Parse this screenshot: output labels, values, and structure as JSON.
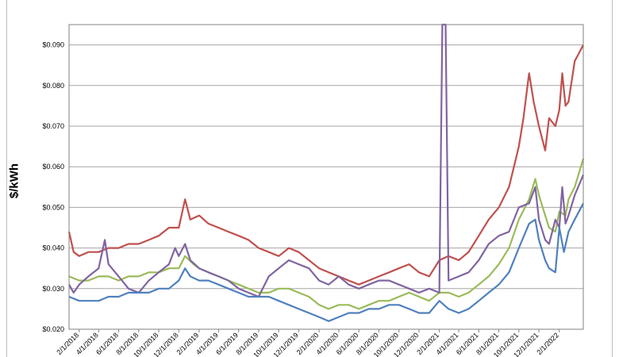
{
  "chart_data": {
    "type": "line",
    "title": "",
    "xlabel": "",
    "ylabel": "$/kWh",
    "ylim": [
      0.02,
      0.095
    ],
    "grid": true,
    "legend": "none",
    "yticks": [
      "$0.020",
      "$0.030",
      "$0.040",
      "$0.050",
      "$0.060",
      "$0.070",
      "$0.080",
      "$0.090"
    ],
    "ytick_values": [
      0.02,
      0.03,
      0.04,
      0.05,
      0.06,
      0.07,
      0.08,
      0.09
    ],
    "x_tick_labels": [
      "2/1/2018",
      "4/1/2018",
      "6/1/2018",
      "8/1/2018",
      "10/1/2018",
      "12/1/2018",
      "2/1/2019",
      "4/1/2019",
      "6/1/2019",
      "8/1/2019",
      "10/1/2019",
      "12/1/2019",
      "2/1/2020",
      "4/1/2020",
      "6/1/2020",
      "8/1/2020",
      "10/1/2020",
      "12/1/2020",
      "2/1/2021",
      "4/1/2021",
      "6/1/2021",
      "8/1/2021",
      "10/1/2021",
      "12/1/2021",
      "2/1/2022"
    ],
    "x_range": [
      "1/1/2018",
      "4/15/2022"
    ],
    "series": [
      {
        "name": "",
        "color": "#c0504d",
        "points": [
          [
            "1/1/2018",
            0.044
          ],
          [
            "1/15/2018",
            0.039
          ],
          [
            "2/1/2018",
            0.038
          ],
          [
            "3/1/2018",
            0.039
          ],
          [
            "4/1/2018",
            0.039
          ],
          [
            "5/1/2018",
            0.04
          ],
          [
            "6/1/2018",
            0.04
          ],
          [
            "7/1/2018",
            0.041
          ],
          [
            "8/1/2018",
            0.041
          ],
          [
            "9/1/2018",
            0.042
          ],
          [
            "10/1/2018",
            0.043
          ],
          [
            "11/1/2018",
            0.045
          ],
          [
            "12/1/2018",
            0.045
          ],
          [
            "12/20/2018",
            0.052
          ],
          [
            "1/5/2019",
            0.047
          ],
          [
            "2/1/2019",
            0.048
          ],
          [
            "3/1/2019",
            0.046
          ],
          [
            "4/1/2019",
            0.045
          ],
          [
            "5/1/2019",
            0.044
          ],
          [
            "6/1/2019",
            0.043
          ],
          [
            "7/1/2019",
            0.042
          ],
          [
            "8/1/2019",
            0.04
          ],
          [
            "9/1/2019",
            0.039
          ],
          [
            "10/1/2019",
            0.038
          ],
          [
            "11/1/2019",
            0.04
          ],
          [
            "12/1/2019",
            0.039
          ],
          [
            "1/1/2020",
            0.037
          ],
          [
            "2/1/2020",
            0.035
          ],
          [
            "3/1/2020",
            0.034
          ],
          [
            "4/1/2020",
            0.033
          ],
          [
            "5/1/2020",
            0.032
          ],
          [
            "6/1/2020",
            0.031
          ],
          [
            "7/1/2020",
            0.032
          ],
          [
            "8/1/2020",
            0.033
          ],
          [
            "9/1/2020",
            0.034
          ],
          [
            "10/1/2020",
            0.035
          ],
          [
            "11/1/2020",
            0.036
          ],
          [
            "12/1/2020",
            0.034
          ],
          [
            "1/1/2021",
            0.033
          ],
          [
            "2/1/2021",
            0.037
          ],
          [
            "3/1/2021",
            0.038
          ],
          [
            "4/1/2021",
            0.037
          ],
          [
            "5/1/2021",
            0.039
          ],
          [
            "6/1/2021",
            0.043
          ],
          [
            "7/1/2021",
            0.047
          ],
          [
            "8/1/2021",
            0.05
          ],
          [
            "9/1/2021",
            0.055
          ],
          [
            "10/1/2021",
            0.065
          ],
          [
            "10/15/2021",
            0.072
          ],
          [
            "11/1/2021",
            0.083
          ],
          [
            "11/15/2021",
            0.076
          ],
          [
            "12/1/2021",
            0.07
          ],
          [
            "12/20/2021",
            0.064
          ],
          [
            "1/1/2022",
            0.072
          ],
          [
            "1/20/2022",
            0.07
          ],
          [
            "2/1/2022",
            0.074
          ],
          [
            "2/10/2022",
            0.083
          ],
          [
            "2/20/2022",
            0.075
          ],
          [
            "3/1/2022",
            0.076
          ],
          [
            "3/20/2022",
            0.086
          ],
          [
            "4/15/2022",
            0.09
          ]
        ]
      },
      {
        "name": "",
        "color": "#9bbb59",
        "points": [
          [
            "1/1/2018",
            0.033
          ],
          [
            "2/1/2018",
            0.032
          ],
          [
            "3/1/2018",
            0.032
          ],
          [
            "4/1/2018",
            0.033
          ],
          [
            "5/1/2018",
            0.033
          ],
          [
            "6/1/2018",
            0.032
          ],
          [
            "7/1/2018",
            0.033
          ],
          [
            "8/1/2018",
            0.033
          ],
          [
            "9/1/2018",
            0.034
          ],
          [
            "10/1/2018",
            0.034
          ],
          [
            "11/1/2018",
            0.035
          ],
          [
            "12/1/2018",
            0.035
          ],
          [
            "12/20/2018",
            0.038
          ],
          [
            "1/15/2019",
            0.036
          ],
          [
            "2/1/2019",
            0.035
          ],
          [
            "3/1/2019",
            0.034
          ],
          [
            "4/1/2019",
            0.033
          ],
          [
            "5/1/2019",
            0.032
          ],
          [
            "6/1/2019",
            0.031
          ],
          [
            "7/1/2019",
            0.03
          ],
          [
            "8/1/2019",
            0.029
          ],
          [
            "9/1/2019",
            0.029
          ],
          [
            "10/1/2019",
            0.03
          ],
          [
            "11/1/2019",
            0.03
          ],
          [
            "12/1/2019",
            0.029
          ],
          [
            "1/1/2020",
            0.028
          ],
          [
            "2/1/2020",
            0.026
          ],
          [
            "3/1/2020",
            0.025
          ],
          [
            "4/1/2020",
            0.026
          ],
          [
            "5/1/2020",
            0.026
          ],
          [
            "6/1/2020",
            0.025
          ],
          [
            "7/1/2020",
            0.026
          ],
          [
            "8/1/2020",
            0.027
          ],
          [
            "9/1/2020",
            0.027
          ],
          [
            "10/1/2020",
            0.028
          ],
          [
            "11/1/2020",
            0.029
          ],
          [
            "12/1/2020",
            0.028
          ],
          [
            "1/1/2021",
            0.027
          ],
          [
            "2/1/2021",
            0.029
          ],
          [
            "3/1/2021",
            0.029
          ],
          [
            "4/1/2021",
            0.028
          ],
          [
            "5/1/2021",
            0.029
          ],
          [
            "6/1/2021",
            0.031
          ],
          [
            "7/1/2021",
            0.033
          ],
          [
            "8/1/2021",
            0.036
          ],
          [
            "9/1/2021",
            0.04
          ],
          [
            "10/1/2021",
            0.047
          ],
          [
            "11/1/2021",
            0.052
          ],
          [
            "11/20/2021",
            0.057
          ],
          [
            "12/1/2021",
            0.053
          ],
          [
            "12/20/2021",
            0.048
          ],
          [
            "1/1/2022",
            0.045
          ],
          [
            "1/20/2022",
            0.044
          ],
          [
            "2/1/2022",
            0.049
          ],
          [
            "2/20/2022",
            0.048
          ],
          [
            "3/1/2022",
            0.052
          ],
          [
            "3/20/2022",
            0.055
          ],
          [
            "4/15/2022",
            0.062
          ]
        ]
      },
      {
        "name": "",
        "color": "#8064a2",
        "points": [
          [
            "1/1/2018",
            0.031
          ],
          [
            "1/15/2018",
            0.029
          ],
          [
            "2/1/2018",
            0.031
          ],
          [
            "3/1/2018",
            0.033
          ],
          [
            "4/1/2018",
            0.035
          ],
          [
            "4/20/2018",
            0.042
          ],
          [
            "5/1/2018",
            0.036
          ],
          [
            "6/1/2018",
            0.033
          ],
          [
            "7/1/2018",
            0.03
          ],
          [
            "8/1/2018",
            0.029
          ],
          [
            "9/1/2018",
            0.032
          ],
          [
            "10/1/2018",
            0.034
          ],
          [
            "11/1/2018",
            0.036
          ],
          [
            "11/20/2018",
            0.04
          ],
          [
            "12/1/2018",
            0.038
          ],
          [
            "12/20/2018",
            0.041
          ],
          [
            "1/5/2019",
            0.037
          ],
          [
            "2/1/2019",
            0.035
          ],
          [
            "3/1/2019",
            0.034
          ],
          [
            "4/1/2019",
            0.033
          ],
          [
            "5/1/2019",
            0.032
          ],
          [
            "6/1/2019",
            0.03
          ],
          [
            "7/1/2019",
            0.029
          ],
          [
            "8/1/2019",
            0.028
          ],
          [
            "9/1/2019",
            0.033
          ],
          [
            "10/1/2019",
            0.035
          ],
          [
            "11/1/2019",
            0.037
          ],
          [
            "12/1/2019",
            0.036
          ],
          [
            "1/1/2020",
            0.035
          ],
          [
            "2/1/2020",
            0.032
          ],
          [
            "3/1/2020",
            0.031
          ],
          [
            "4/1/2020",
            0.033
          ],
          [
            "5/1/2020",
            0.031
          ],
          [
            "6/1/2020",
            0.03
          ],
          [
            "7/1/2020",
            0.031
          ],
          [
            "8/1/2020",
            0.032
          ],
          [
            "9/1/2020",
            0.032
          ],
          [
            "10/1/2020",
            0.031
          ],
          [
            "11/1/2020",
            0.03
          ],
          [
            "12/1/2020",
            0.029
          ],
          [
            "1/1/2021",
            0.03
          ],
          [
            "2/1/2021",
            0.029
          ],
          [
            "2/10/2021",
            0.095
          ],
          [
            "2/20/2021",
            0.095
          ],
          [
            "3/1/2021",
            0.032
          ],
          [
            "4/1/2021",
            0.033
          ],
          [
            "5/1/2021",
            0.034
          ],
          [
            "6/1/2021",
            0.037
          ],
          [
            "7/1/2021",
            0.041
          ],
          [
            "8/1/2021",
            0.043
          ],
          [
            "9/1/2021",
            0.044
          ],
          [
            "10/1/2021",
            0.05
          ],
          [
            "11/1/2021",
            0.051
          ],
          [
            "11/20/2021",
            0.055
          ],
          [
            "12/1/2021",
            0.047
          ],
          [
            "12/20/2021",
            0.042
          ],
          [
            "1/1/2022",
            0.041
          ],
          [
            "1/20/2022",
            0.047
          ],
          [
            "2/1/2022",
            0.045
          ],
          [
            "2/10/2022",
            0.055
          ],
          [
            "2/20/2022",
            0.046
          ],
          [
            "3/1/2022",
            0.048
          ],
          [
            "3/20/2022",
            0.053
          ],
          [
            "4/15/2022",
            0.058
          ]
        ]
      },
      {
        "name": "",
        "color": "#4f81bd",
        "points": [
          [
            "1/1/2018",
            0.028
          ],
          [
            "2/1/2018",
            0.027
          ],
          [
            "3/1/2018",
            0.027
          ],
          [
            "4/1/2018",
            0.027
          ],
          [
            "5/1/2018",
            0.028
          ],
          [
            "6/1/2018",
            0.028
          ],
          [
            "7/1/2018",
            0.029
          ],
          [
            "8/1/2018",
            0.029
          ],
          [
            "9/1/2018",
            0.029
          ],
          [
            "10/1/2018",
            0.03
          ],
          [
            "11/1/2018",
            0.03
          ],
          [
            "12/1/2018",
            0.032
          ],
          [
            "12/20/2018",
            0.035
          ],
          [
            "1/5/2019",
            0.033
          ],
          [
            "2/1/2019",
            0.032
          ],
          [
            "3/1/2019",
            0.032
          ],
          [
            "4/1/2019",
            0.031
          ],
          [
            "5/1/2019",
            0.03
          ],
          [
            "6/1/2019",
            0.029
          ],
          [
            "7/1/2019",
            0.028
          ],
          [
            "8/1/2019",
            0.028
          ],
          [
            "9/1/2019",
            0.028
          ],
          [
            "10/1/2019",
            0.027
          ],
          [
            "11/1/2019",
            0.026
          ],
          [
            "12/1/2019",
            0.025
          ],
          [
            "1/1/2020",
            0.024
          ],
          [
            "2/1/2020",
            0.023
          ],
          [
            "3/1/2020",
            0.022
          ],
          [
            "4/1/2020",
            0.023
          ],
          [
            "5/1/2020",
            0.024
          ],
          [
            "6/1/2020",
            0.024
          ],
          [
            "7/1/2020",
            0.025
          ],
          [
            "8/1/2020",
            0.025
          ],
          [
            "9/1/2020",
            0.026
          ],
          [
            "10/1/2020",
            0.026
          ],
          [
            "11/1/2020",
            0.025
          ],
          [
            "12/1/2020",
            0.024
          ],
          [
            "1/1/2021",
            0.024
          ],
          [
            "2/1/2021",
            0.027
          ],
          [
            "3/1/2021",
            0.025
          ],
          [
            "4/1/2021",
            0.024
          ],
          [
            "5/1/2021",
            0.025
          ],
          [
            "6/1/2021",
            0.027
          ],
          [
            "7/1/2021",
            0.029
          ],
          [
            "8/1/2021",
            0.031
          ],
          [
            "9/1/2021",
            0.034
          ],
          [
            "10/1/2021",
            0.04
          ],
          [
            "11/1/2021",
            0.046
          ],
          [
            "11/20/2021",
            0.047
          ],
          [
            "12/1/2021",
            0.042
          ],
          [
            "12/20/2021",
            0.037
          ],
          [
            "1/1/2022",
            0.035
          ],
          [
            "1/20/2022",
            0.034
          ],
          [
            "2/1/2022",
            0.045
          ],
          [
            "2/15/2022",
            0.039
          ],
          [
            "3/1/2022",
            0.044
          ],
          [
            "3/20/2022",
            0.047
          ],
          [
            "4/15/2022",
            0.051
          ]
        ]
      }
    ]
  }
}
